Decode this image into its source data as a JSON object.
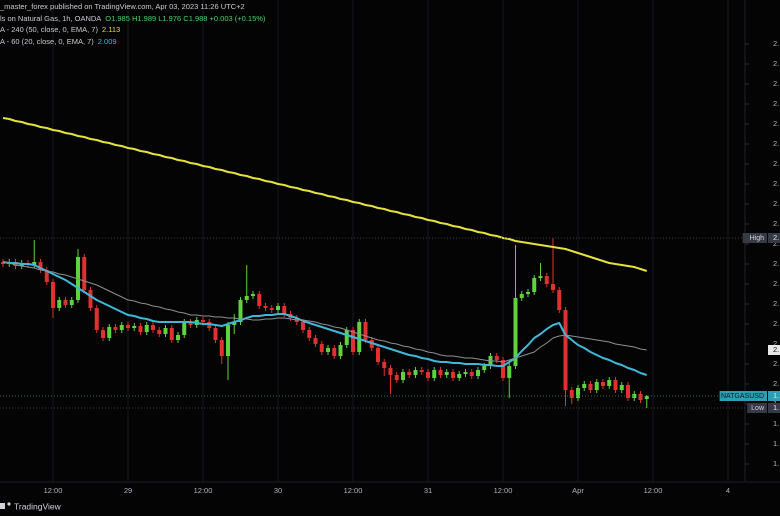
{
  "chart_data": {
    "type": "candlestick",
    "title": "_master_forex published on TradingView.com, Apr 03, 2023 11:26 UTC+2",
    "symbol": "ls on Natural Gas, 1h, OANDA",
    "quote": "O1.985  H1.989  L1.976  C1.988  +0.003 (+0.15%)",
    "categories": [
      null,
      null,
      null,
      null,
      null,
      null,
      null,
      null,
      "12:00",
      null,
      null,
      null,
      null,
      null,
      null,
      null,
      null,
      null,
      null,
      null,
      "29",
      null,
      null,
      null,
      null,
      null,
      null,
      null,
      null,
      null,
      null,
      null,
      "12:00",
      null,
      null,
      null,
      null,
      null,
      null,
      null,
      null,
      null,
      null,
      null,
      "30",
      null,
      null,
      null,
      null,
      null,
      null,
      null,
      null,
      null,
      null,
      null,
      "12:00",
      null,
      null,
      null,
      null,
      null,
      null,
      null,
      null,
      null,
      null,
      null,
      "31",
      null,
      null,
      null,
      null,
      null,
      null,
      null,
      null,
      null,
      null,
      null,
      "12:00",
      null,
      null,
      null,
      null,
      null,
      null,
      null,
      null,
      null,
      null,
      null,
      "Apr",
      null,
      null,
      null,
      null,
      null,
      null,
      null,
      null,
      null,
      null,
      null,
      "12:00",
      null,
      null,
      null,
      null,
      null,
      null,
      null,
      null,
      null,
      null,
      null,
      "4",
      null
    ],
    "open": [
      2.122,
      2.12,
      2.122,
      2.118,
      2.121,
      2.119,
      2.122,
      2.114,
      2.102,
      2.076,
      2.084,
      2.079,
      2.084,
      2.127,
      2.094,
      2.076,
      2.054,
      2.046,
      2.057,
      2.054,
      2.059,
      2.056,
      2.058,
      2.052,
      2.059,
      2.054,
      2.05,
      2.056,
      2.044,
      2.049,
      2.062,
      2.059,
      2.064,
      2.062,
      2.056,
      2.044,
      2.028,
      2.059,
      2.062,
      2.084,
      2.088,
      2.09,
      2.078,
      2.076,
      2.074,
      2.078,
      2.07,
      2.066,
      2.062,
      2.054,
      2.046,
      2.04,
      2.032,
      2.036,
      2.028,
      2.039,
      2.054,
      2.032,
      2.062,
      2.044,
      2.036,
      2.022,
      2.016,
      2.009,
      2.004,
      2.012,
      2.009,
      2.014,
      2.012,
      2.006,
      2.014,
      2.009,
      2.012,
      2.006,
      2.01,
      2.012,
      2.008,
      2.014,
      2.018,
      2.028,
      2.024,
      2.006,
      2.018,
      2.086,
      2.09,
      2.092,
      2.106,
      2.108,
      2.1,
      2.094,
      2.074,
      1.994,
      1.986,
      1.996,
      2.0,
      1.994,
      2.002,
      1.998,
      2.004,
      1.994,
      1.999,
      1.986,
      1.99,
      1.985,
      null,
      null,
      null,
      null,
      null,
      null,
      null,
      null,
      null,
      null,
      null,
      null,
      null,
      null
    ],
    "high": [
      2.125,
      2.125,
      2.125,
      2.124,
      2.124,
      2.144,
      2.125,
      2.117,
      2.105,
      2.087,
      2.087,
      2.087,
      2.135,
      2.13,
      2.097,
      2.079,
      2.057,
      2.06,
      2.06,
      2.062,
      2.062,
      2.061,
      2.061,
      2.062,
      2.062,
      2.057,
      2.059,
      2.059,
      2.052,
      2.065,
      2.065,
      2.067,
      2.067,
      2.065,
      2.059,
      2.047,
      2.062,
      2.07,
      2.087,
      2.119,
      2.093,
      2.093,
      2.081,
      2.079,
      2.081,
      2.081,
      2.073,
      2.069,
      2.065,
      2.057,
      2.049,
      2.043,
      2.039,
      2.039,
      2.042,
      2.057,
      2.057,
      2.065,
      2.065,
      2.047,
      2.039,
      2.025,
      2.019,
      2.012,
      2.015,
      2.015,
      2.017,
      2.017,
      2.015,
      2.017,
      2.017,
      2.015,
      2.015,
      2.013,
      2.015,
      2.015,
      2.017,
      2.021,
      2.031,
      2.031,
      2.027,
      2.021,
      2.139,
      2.093,
      2.095,
      2.109,
      2.121,
      2.111,
      2.146,
      2.097,
      2.077,
      1.997,
      1.999,
      2.003,
      2.003,
      2.005,
      2.005,
      2.007,
      2.007,
      2.002,
      2.002,
      1.993,
      1.993,
      1.989,
      null,
      null,
      null,
      null,
      null,
      null,
      null,
      null,
      null,
      null,
      null,
      null,
      null,
      null
    ],
    "low": [
      2.117,
      2.117,
      2.115,
      2.115,
      2.116,
      2.116,
      2.111,
      2.099,
      2.066,
      2.073,
      2.076,
      2.076,
      2.081,
      2.091,
      2.073,
      2.051,
      2.043,
      2.043,
      2.051,
      2.051,
      2.053,
      2.053,
      2.049,
      2.049,
      2.051,
      2.047,
      2.047,
      2.041,
      2.041,
      2.046,
      2.056,
      2.056,
      2.059,
      2.053,
      2.041,
      2.02,
      2.004,
      2.05,
      2.059,
      2.081,
      2.085,
      2.075,
      2.073,
      2.071,
      2.071,
      2.067,
      2.063,
      2.059,
      2.051,
      2.043,
      2.037,
      2.029,
      2.029,
      2.025,
      2.025,
      2.036,
      2.029,
      2.029,
      2.041,
      2.033,
      2.019,
      2.008,
      1.99,
      2.001,
      2.001,
      2.006,
      2.006,
      2.009,
      2.003,
      2.003,
      2.006,
      2.006,
      2.003,
      2.003,
      2.007,
      2.005,
      2.005,
      2.011,
      2.015,
      2.021,
      2.003,
      1.986,
      2.015,
      2.083,
      2.087,
      2.089,
      2.103,
      2.097,
      2.091,
      2.071,
      1.978,
      1.98,
      1.983,
      1.993,
      1.991,
      1.991,
      1.995,
      1.995,
      1.991,
      1.991,
      1.983,
      1.983,
      1.981,
      1.976,
      null,
      null,
      null,
      null,
      null,
      null,
      null,
      null,
      null,
      null,
      null,
      null,
      null,
      null
    ],
    "close": [
      2.12,
      2.122,
      2.118,
      2.121,
      2.119,
      2.122,
      2.114,
      2.102,
      2.076,
      2.084,
      2.079,
      2.084,
      2.127,
      2.094,
      2.076,
      2.054,
      2.046,
      2.057,
      2.054,
      2.059,
      2.056,
      2.058,
      2.052,
      2.059,
      2.054,
      2.05,
      2.056,
      2.044,
      2.049,
      2.062,
      2.059,
      2.064,
      2.062,
      2.056,
      2.044,
      2.028,
      2.059,
      2.062,
      2.084,
      2.088,
      2.09,
      2.078,
      2.076,
      2.074,
      2.078,
      2.07,
      2.066,
      2.062,
      2.054,
      2.046,
      2.04,
      2.032,
      2.036,
      2.028,
      2.039,
      2.054,
      2.032,
      2.062,
      2.044,
      2.036,
      2.022,
      2.016,
      2.009,
      2.004,
      2.012,
      2.009,
      2.014,
      2.012,
      2.006,
      2.014,
      2.009,
      2.012,
      2.006,
      2.01,
      2.012,
      2.008,
      2.014,
      2.018,
      2.028,
      2.024,
      2.006,
      2.018,
      2.086,
      2.09,
      2.092,
      2.106,
      2.108,
      2.1,
      2.094,
      2.074,
      1.994,
      1.986,
      1.996,
      2.0,
      1.994,
      2.002,
      1.998,
      2.004,
      1.994,
      1.999,
      1.986,
      1.99,
      1.984,
      1.988,
      null,
      null,
      null,
      null,
      null,
      null,
      null,
      null,
      null,
      null,
      null,
      null,
      null,
      null
    ],
    "up_color": "#5fd33f",
    "down_color": "#e0302f",
    "overlays": [
      {
        "name": "A - 240 (50, close, 0, EMA, 7)",
        "last": 2.113,
        "color": "#e6e23c",
        "values": [
          2.266,
          2.265,
          2.263,
          2.262,
          2.26,
          2.259,
          2.257,
          2.256,
          2.254,
          2.253,
          2.251,
          2.25,
          2.248,
          2.247,
          2.245,
          2.244,
          2.242,
          2.241,
          2.239,
          2.238,
          2.236,
          2.235,
          2.233,
          2.232,
          2.23,
          2.229,
          2.227,
          2.226,
          2.224,
          2.223,
          2.221,
          2.22,
          2.218,
          2.217,
          2.215,
          2.214,
          2.212,
          2.211,
          2.209,
          2.208,
          2.206,
          2.205,
          2.203,
          2.202,
          2.2,
          2.199,
          2.197,
          2.196,
          2.194,
          2.193,
          2.191,
          2.19,
          2.188,
          2.187,
          2.185,
          2.184,
          2.182,
          2.181,
          2.179,
          2.178,
          2.176,
          2.175,
          2.173,
          2.172,
          2.17,
          2.169,
          2.167,
          2.166,
          2.164,
          2.163,
          2.161,
          2.16,
          2.158,
          2.157,
          2.155,
          2.154,
          2.152,
          2.151,
          2.149,
          2.148,
          2.146,
          2.145,
          2.143,
          2.142,
          2.141,
          2.14,
          2.139,
          2.138,
          2.137,
          2.136,
          2.135,
          2.133,
          2.131,
          2.129,
          2.127,
          2.125,
          2.123,
          2.121,
          2.12,
          2.119,
          2.118,
          2.117,
          2.115,
          2.113,
          null,
          null,
          null,
          null,
          null,
          null,
          null,
          null,
          null,
          null,
          null,
          null,
          null,
          null
        ]
      },
      {
        "name": "A - 60 (20, close, 0, EMA, 7)",
        "last": 2.009,
        "color": "#3fb8d8",
        "values": [
          2.122,
          2.121,
          2.121,
          2.12,
          2.12,
          2.119,
          2.116,
          2.113,
          2.11,
          2.107,
          2.104,
          2.1,
          2.096,
          2.092,
          2.088,
          2.084,
          2.081,
          2.078,
          2.075,
          2.072,
          2.069,
          2.068,
          2.066,
          2.065,
          2.063,
          2.062,
          2.062,
          2.062,
          2.062,
          2.062,
          2.062,
          2.061,
          2.06,
          2.06,
          2.059,
          2.058,
          2.06,
          2.062,
          2.064,
          2.066,
          2.068,
          2.068,
          2.069,
          2.069,
          2.07,
          2.07,
          2.068,
          2.066,
          2.063,
          2.061,
          2.059,
          2.057,
          2.055,
          2.053,
          2.051,
          2.049,
          2.047,
          2.045,
          2.043,
          2.041,
          2.039,
          2.037,
          2.035,
          2.033,
          2.031,
          2.029,
          2.028,
          2.026,
          2.025,
          2.023,
          2.022,
          2.022,
          2.021,
          2.021,
          2.02,
          2.02,
          2.02,
          2.019,
          2.019,
          2.018,
          2.018,
          2.022,
          2.026,
          2.033,
          2.039,
          2.046,
          2.05,
          2.055,
          2.059,
          2.061,
          2.049,
          2.044,
          2.039,
          2.036,
          2.032,
          2.029,
          2.026,
          2.024,
          2.021,
          2.019,
          2.016,
          2.014,
          2.011,
          2.009,
          null,
          null,
          null,
          null,
          null,
          null,
          null,
          null,
          null,
          null,
          null,
          null,
          null,
          null
        ]
      },
      {
        "color": "#8d8f94",
        "values": [
          2.122,
          2.121,
          2.119,
          2.118,
          2.117,
          2.116,
          2.114,
          2.113,
          2.112,
          2.11,
          2.109,
          2.107,
          2.105,
          2.103,
          2.101,
          2.099,
          2.096,
          2.093,
          2.09,
          2.087,
          2.084,
          2.083,
          2.081,
          2.08,
          2.078,
          2.077,
          2.075,
          2.074,
          2.072,
          2.071,
          2.069,
          2.069,
          2.068,
          2.068,
          2.067,
          2.067,
          2.066,
          2.066,
          2.065,
          2.065,
          2.064,
          2.064,
          2.065,
          2.065,
          2.066,
          2.066,
          2.065,
          2.064,
          2.064,
          2.063,
          2.062,
          2.06,
          2.059,
          2.057,
          2.056,
          2.054,
          2.052,
          2.05,
          2.048,
          2.046,
          2.044,
          2.043,
          2.041,
          2.04,
          2.038,
          2.037,
          2.035,
          2.034,
          2.032,
          2.031,
          2.029,
          2.028,
          2.028,
          2.027,
          2.026,
          2.026,
          2.025,
          2.024,
          2.023,
          2.023,
          2.022,
          2.024,
          2.026,
          2.028,
          2.03,
          2.032,
          2.037,
          2.041,
          2.046,
          2.048,
          2.049,
          2.048,
          2.047,
          2.046,
          2.045,
          2.044,
          2.043,
          2.042,
          2.04,
          2.039,
          2.038,
          2.037,
          2.035,
          2.034,
          null,
          null,
          null,
          null,
          null,
          null,
          null,
          null,
          null,
          null,
          null,
          null,
          null,
          null
        ]
      }
    ],
    "ylim": [
      1.902,
      2.384
    ],
    "yticks": [
      {
        "value": 2.34,
        "label": "2."
      },
      {
        "value": 2.32,
        "label": "2."
      },
      {
        "value": 2.3,
        "label": "2."
      },
      {
        "value": 2.28,
        "label": "2."
      },
      {
        "value": 2.26,
        "label": "2."
      },
      {
        "value": 2.24,
        "label": "2."
      },
      {
        "value": 2.22,
        "label": "2."
      },
      {
        "value": 2.2,
        "label": "2."
      },
      {
        "value": 2.18,
        "label": "2."
      },
      {
        "value": 2.16,
        "label": "2."
      },
      {
        "value": 2.14,
        "label": "2."
      },
      {
        "value": 2.12,
        "label": "2."
      },
      {
        "value": 2.1,
        "label": "2."
      },
      {
        "value": 2.08,
        "label": "2."
      },
      {
        "value": 2.06,
        "label": "2."
      },
      {
        "value": 2.04,
        "label": "2."
      },
      {
        "value": 2.02,
        "label": "2."
      },
      {
        "value": 2.0,
        "label": "2."
      },
      {
        "value": 1.98,
        "label": "1."
      },
      {
        "value": 1.96,
        "label": "1."
      },
      {
        "value": 1.94,
        "label": "1."
      },
      {
        "value": 1.92,
        "label": "1."
      }
    ],
    "tags": [
      {
        "label": "High",
        "value": 2.146,
        "value_label": "2.",
        "color": "#363a45"
      },
      {
        "value": 2.034,
        "value_label": "2.",
        "color": "#e8e8e8"
      },
      {
        "label": "NATGASUSD",
        "value": 1.988,
        "value_label": "1.",
        "color": "#2b9fb3"
      },
      {
        "label": "Low",
        "value": 1.976,
        "value_label": "1.",
        "color": "#363a45"
      }
    ],
    "footer": "TradingView"
  }
}
